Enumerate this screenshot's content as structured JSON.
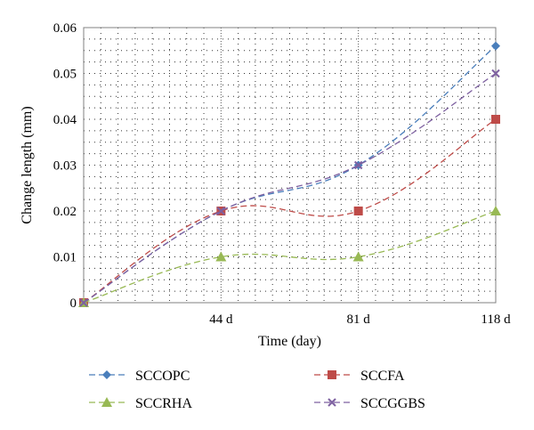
{
  "chart_data": {
    "type": "line",
    "title": "",
    "xlabel": "Time (day)",
    "ylabel": "Change length (mm)",
    "x_categories": [
      "0",
      "44 d",
      "81 d",
      "118 d"
    ],
    "x_tick_labels": [
      "44 d",
      "81 d",
      "118 d"
    ],
    "ylim": [
      0,
      0.06
    ],
    "y_ticks": [
      0,
      0.01,
      0.02,
      0.03,
      0.04,
      0.05,
      0.06
    ],
    "y_tick_labels": [
      "0",
      "0.01",
      "0.02",
      "0.03",
      "0.04",
      "0.05",
      "0.06"
    ],
    "grid": "dotted",
    "legend_position": "bottom",
    "series": [
      {
        "name": "SCCOPC",
        "values": [
          0,
          0.02,
          0.03,
          0.056
        ],
        "color": "#4a7ebb",
        "marker": "diamond"
      },
      {
        "name": "SCCFA",
        "values": [
          0,
          0.02,
          0.02,
          0.04
        ],
        "color": "#be4b48",
        "marker": "square"
      },
      {
        "name": "SCCRHA",
        "values": [
          0,
          0.01,
          0.01,
          0.02
        ],
        "color": "#98b954",
        "marker": "triangle"
      },
      {
        "name": "SCCGGBS",
        "values": [
          0,
          0.02,
          0.03,
          0.05
        ],
        "color": "#7d60a0",
        "marker": "x"
      }
    ]
  }
}
